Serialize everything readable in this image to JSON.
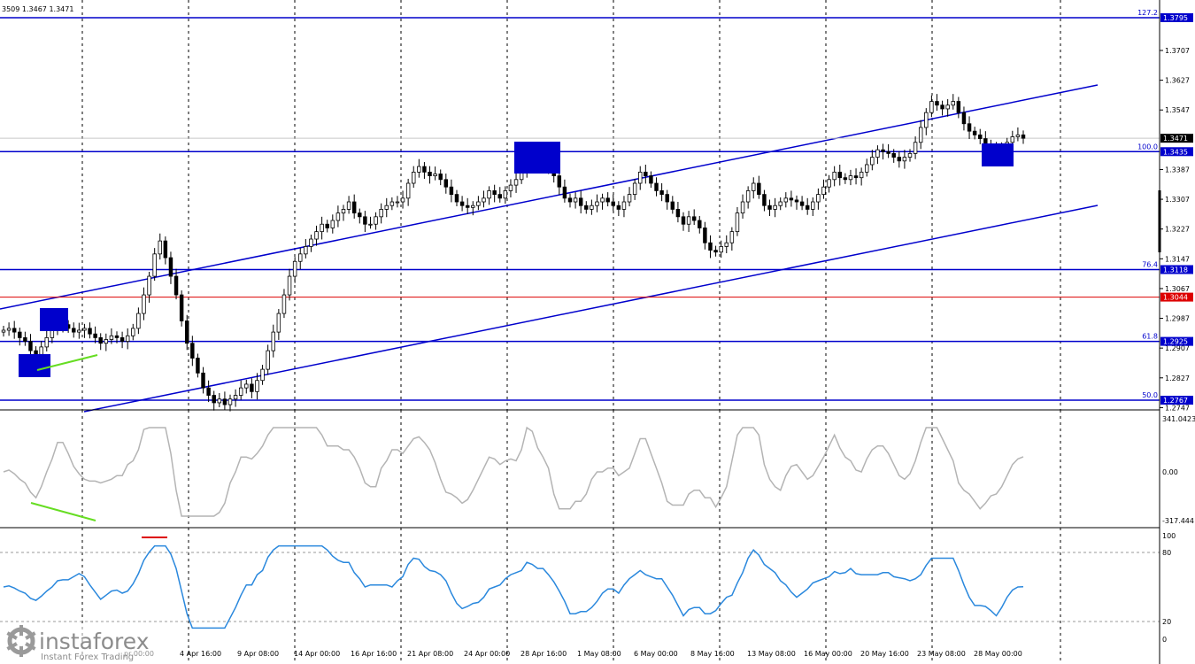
{
  "header": {
    "ohlc_text": "3509 1.3467 1.3471"
  },
  "colors": {
    "level_line": "#0000cc",
    "red_line": "#dd0000",
    "price_bg": "#0000cc",
    "red_bg": "#dd0000",
    "cci_line": "#b4b4b4",
    "cci_divergence": "#66dd22",
    "rsi_line": "#2a88dd",
    "rsi_marker": "#dd0000",
    "grid": "#000000",
    "candle": "#000000"
  },
  "price_axis": {
    "ticks": [
      "1.3795",
      "1.3707",
      "1.3627",
      "1.3547",
      "1.3471",
      "1.3435",
      "1.3387",
      "1.3307",
      "1.3227",
      "1.3147",
      "1.3118",
      "1.3067",
      "1.3044",
      "1.2987",
      "1.2925",
      "1.2907",
      "1.2827",
      "1.2767",
      "1.2747"
    ],
    "current_price": "1.3471"
  },
  "levels": [
    {
      "fib": "127.2",
      "price": "1.3795",
      "color": "blue"
    },
    {
      "fib": "100.0",
      "price": "1.3435",
      "color": "blue"
    },
    {
      "fib": "76.4",
      "price": "1.3118",
      "color": "blue"
    },
    {
      "fib": "",
      "price": "1.3044",
      "color": "red"
    },
    {
      "fib": "61.8",
      "price": "1.2925",
      "color": "blue"
    },
    {
      "fib": "50.0",
      "price": "1.2767",
      "color": "blue"
    }
  ],
  "cci": {
    "max_label": "341.0423",
    "zero_label": "0.00",
    "min_label": "-317.444"
  },
  "rsi": {
    "levels": [
      "100",
      "80",
      "20",
      "0"
    ]
  },
  "time_axis": [
    "4 Apr 16:00",
    "9 Apr 08:00",
    "14 Apr 00:00",
    "16 Apr 16:00",
    "21 Apr 08:00",
    "24 Apr 00:00",
    "28 Apr 16:00",
    "1 May 08:00",
    "6 May 00:00",
    "8 May 16:00",
    "13 May 08:00",
    "16 May 00:00",
    "20 May 16:00",
    "23 May 08:00",
    "28 May 00:00"
  ],
  "time_axis_partial": "pr 00:00",
  "watermark": {
    "brand": "instaforex",
    "tagline": "Instant Forex Trading"
  },
  "chart_data": {
    "type": "candlestick",
    "symbol_timeframe": "H4",
    "price_range": [
      1.2745,
      1.3835
    ],
    "close_series": [
      1.2955,
      1.296,
      1.295,
      1.2935,
      1.2925,
      1.29,
      1.289,
      1.291,
      1.2935,
      1.296,
      1.298,
      1.297,
      1.296,
      1.295,
      1.2955,
      1.296,
      1.2945,
      1.2935,
      1.292,
      1.293,
      1.294,
      1.2935,
      1.2925,
      1.294,
      1.296,
      1.3,
      1.305,
      1.31,
      1.316,
      1.3195,
      1.315,
      1.31,
      1.305,
      1.298,
      1.292,
      1.288,
      1.284,
      1.28,
      1.278,
      1.276,
      1.277,
      1.2755,
      1.277,
      1.278,
      1.28,
      1.281,
      1.279,
      1.282,
      1.285,
      1.29,
      1.295,
      1.3,
      1.305,
      1.31,
      1.314,
      1.316,
      1.318,
      1.32,
      1.322,
      1.324,
      1.323,
      1.325,
      1.327,
      1.328,
      1.33,
      1.327,
      1.326,
      1.324,
      1.324,
      1.326,
      1.328,
      1.329,
      1.33,
      1.33,
      1.331,
      1.335,
      1.338,
      1.3395,
      1.338,
      1.337,
      1.3375,
      1.336,
      1.334,
      1.332,
      1.33,
      1.329,
      1.3285,
      1.329,
      1.33,
      1.331,
      1.333,
      1.332,
      1.331,
      1.333,
      1.3345,
      1.336,
      1.338,
      1.343,
      1.344,
      1.341,
      1.34,
      1.339,
      1.337,
      1.334,
      1.331,
      1.33,
      1.331,
      1.329,
      1.328,
      1.329,
      1.33,
      1.331,
      1.33,
      1.329,
      1.328,
      1.33,
      1.332,
      1.335,
      1.338,
      1.337,
      1.335,
      1.333,
      1.332,
      1.33,
      1.328,
      1.326,
      1.324,
      1.326,
      1.325,
      1.323,
      1.319,
      1.317,
      1.3165,
      1.318,
      1.319,
      1.322,
      1.327,
      1.33,
      1.333,
      1.335,
      1.332,
      1.329,
      1.328,
      1.329,
      1.33,
      1.331,
      1.3305,
      1.33,
      1.329,
      1.328,
      1.33,
      1.332,
      1.334,
      1.336,
      1.338,
      1.3365,
      1.336,
      1.337,
      1.3365,
      1.338,
      1.34,
      1.342,
      1.344,
      1.3435,
      1.343,
      1.342,
      1.341,
      1.342,
      1.343,
      1.346,
      1.35,
      1.354,
      1.357,
      1.356,
      1.355,
      1.356,
      1.357,
      1.354,
      1.351,
      1.349,
      1.348,
      1.347,
      1.3455,
      1.3445,
      1.343,
      1.344,
      1.346,
      1.3475,
      1.348,
      1.3471
    ]
  }
}
